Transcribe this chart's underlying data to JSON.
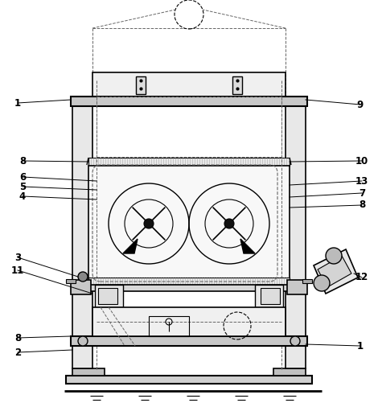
{
  "bg_color": "#ffffff",
  "line_color": "#000000",
  "dashed_color": "#666666",
  "label_color": "#000000",
  "figsize": [
    4.7,
    5.01
  ],
  "dpi": 100
}
